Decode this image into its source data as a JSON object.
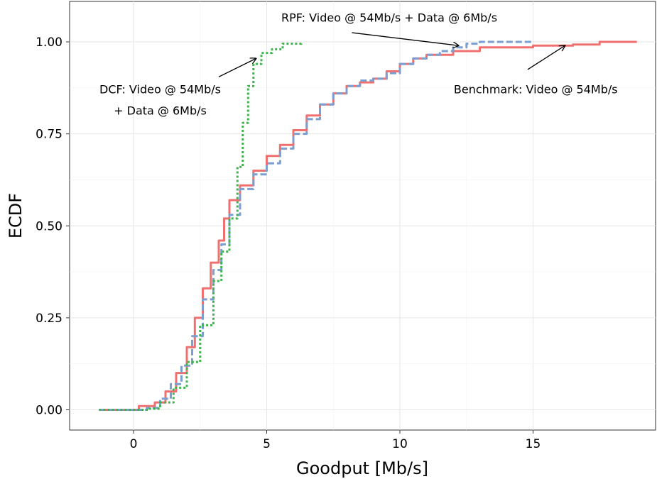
{
  "chart_data": {
    "type": "line",
    "title": "",
    "xlabel": "Goodput [Mb/s]",
    "ylabel": "ECDF",
    "xlim": [
      -2.4,
      19.6
    ],
    "ylim": [
      -0.055,
      1.11
    ],
    "x_ticks": [
      0,
      5,
      10,
      15
    ],
    "x_tick_labels": [
      "0",
      "5",
      "10",
      "15"
    ],
    "y_ticks": [
      0,
      0.25,
      0.5,
      0.75,
      1.0
    ],
    "y_tick_labels": [
      "0.00",
      "0.25",
      "0.50",
      "0.75",
      "1.00"
    ],
    "grid": true,
    "legend": "none",
    "series": [
      {
        "color": "#f07070",
        "dash": "solid",
        "points": [
          [
            -1.3,
            0
          ],
          [
            0,
            0
          ],
          [
            0.2,
            0.01
          ],
          [
            0.8,
            0.02
          ],
          [
            1.2,
            0.05
          ],
          [
            1.6,
            0.1
          ],
          [
            2.0,
            0.17
          ],
          [
            2.3,
            0.25
          ],
          [
            2.6,
            0.33
          ],
          [
            2.9,
            0.4
          ],
          [
            3.2,
            0.46
          ],
          [
            3.4,
            0.52
          ],
          [
            3.6,
            0.57
          ],
          [
            4.0,
            0.61
          ],
          [
            4.5,
            0.65
          ],
          [
            5.0,
            0.69
          ],
          [
            5.5,
            0.72
          ],
          [
            6.0,
            0.76
          ],
          [
            6.5,
            0.8
          ],
          [
            7.0,
            0.83
          ],
          [
            7.5,
            0.86
          ],
          [
            8.0,
            0.88
          ],
          [
            8.5,
            0.89
          ],
          [
            9.0,
            0.9
          ],
          [
            9.5,
            0.92
          ],
          [
            10.0,
            0.94
          ],
          [
            10.5,
            0.955
          ],
          [
            11.0,
            0.965
          ],
          [
            12.0,
            0.975
          ],
          [
            13.0,
            0.985
          ],
          [
            15.0,
            0.99
          ],
          [
            16.5,
            0.993
          ],
          [
            17.5,
            1.0
          ],
          [
            18.9,
            1.0
          ]
        ]
      },
      {
        "color": "#7a9fd0",
        "dash": "dashed",
        "points": [
          [
            -1.3,
            0
          ],
          [
            0,
            0
          ],
          [
            0.5,
            0.005
          ],
          [
            1.0,
            0.03
          ],
          [
            1.4,
            0.07
          ],
          [
            1.8,
            0.12
          ],
          [
            2.2,
            0.2
          ],
          [
            2.6,
            0.3
          ],
          [
            3.0,
            0.38
          ],
          [
            3.3,
            0.45
          ],
          [
            3.6,
            0.53
          ],
          [
            4.0,
            0.6
          ],
          [
            4.5,
            0.64
          ],
          [
            5.0,
            0.67
          ],
          [
            5.5,
            0.71
          ],
          [
            6.0,
            0.75
          ],
          [
            6.5,
            0.79
          ],
          [
            7.0,
            0.83
          ],
          [
            7.5,
            0.86
          ],
          [
            8.0,
            0.88
          ],
          [
            8.5,
            0.895
          ],
          [
            9.0,
            0.9
          ],
          [
            9.5,
            0.915
          ],
          [
            10.0,
            0.94
          ],
          [
            10.5,
            0.955
          ],
          [
            11.0,
            0.965
          ],
          [
            11.5,
            0.975
          ],
          [
            12.0,
            0.985
          ],
          [
            12.5,
            0.995
          ],
          [
            13.0,
            1.0
          ],
          [
            15.0,
            1.0
          ]
        ]
      },
      {
        "color": "#3cb44b",
        "dash": "dotted",
        "points": [
          [
            -1.3,
            0
          ],
          [
            0,
            0
          ],
          [
            0.5,
            0.003
          ],
          [
            1.0,
            0.02
          ],
          [
            1.5,
            0.06
          ],
          [
            2.0,
            0.13
          ],
          [
            2.5,
            0.23
          ],
          [
            3.0,
            0.35
          ],
          [
            3.3,
            0.43
          ],
          [
            3.6,
            0.52
          ],
          [
            3.9,
            0.66
          ],
          [
            4.1,
            0.78
          ],
          [
            4.3,
            0.88
          ],
          [
            4.5,
            0.94
          ],
          [
            4.8,
            0.97
          ],
          [
            5.2,
            0.98
          ],
          [
            5.6,
            0.995
          ],
          [
            6.3,
            1.0
          ]
        ]
      }
    ],
    "annotations": [
      {
        "lines": [
          "RPF: Video @ 54Mb/s + Data @ 6Mb/s"
        ],
        "anchor": "middle",
        "x": 9.6,
        "y": 1.055,
        "arrow": [
          [
            8.2,
            1.025
          ],
          [
            12.2,
            0.99
          ]
        ]
      },
      {
        "lines": [
          "Benchmark: Video @ 54Mb/s"
        ],
        "anchor": "middle",
        "x": 15.1,
        "y": 0.86,
        "arrow": [
          [
            14.8,
            0.925
          ],
          [
            16.2,
            0.99
          ]
        ]
      },
      {
        "lines": [
          "DCF: Video @ 54Mb/s",
          "+ Data @ 6Mb/s"
        ],
        "anchor": "middle",
        "x": 1.0,
        "y": 0.86,
        "arrow": [
          [
            3.2,
            0.905
          ],
          [
            4.6,
            0.955
          ]
        ]
      }
    ]
  }
}
